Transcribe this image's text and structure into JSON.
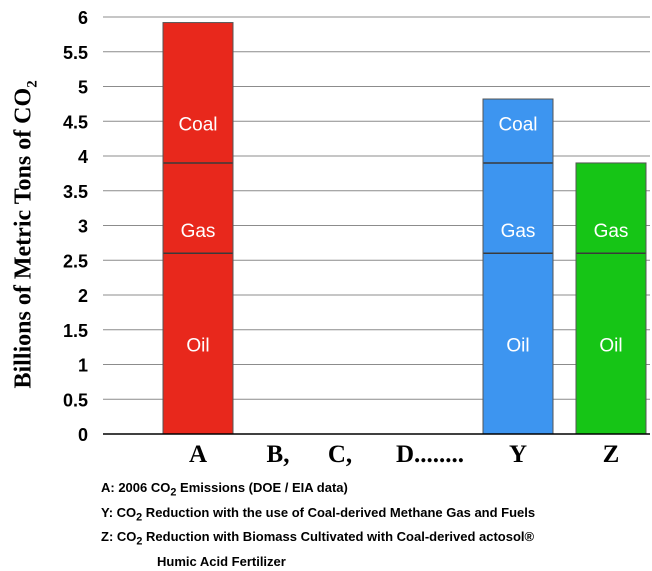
{
  "chart_data": {
    "type": "bar",
    "stacked": true,
    "categories": [
      "A",
      "B,",
      "C,",
      "D........",
      "Y",
      "Z"
    ],
    "ylabel_main": "Billions of Metric Tons of CO",
    "ylabel_sub": "2",
    "ylim": [
      0,
      6
    ],
    "yticks": [
      "0",
      "0.5",
      "1",
      "1.5",
      "2",
      "2.5",
      "3",
      "3.5",
      "4",
      "4.5",
      "5",
      "5.5",
      "6"
    ],
    "grid": true,
    "bars": [
      {
        "category": "A",
        "color": "#e8281c",
        "total": 5.92,
        "segments": [
          {
            "label": "Oil",
            "from": 0,
            "to": 2.6
          },
          {
            "label": "Gas",
            "from": 2.6,
            "to": 3.9
          },
          {
            "label": "Coal",
            "from": 3.9,
            "to": 5.92
          }
        ]
      },
      {
        "category": "Y",
        "color": "#3d95f0",
        "total": 4.82,
        "segments": [
          {
            "label": "Oil",
            "from": 0,
            "to": 2.6
          },
          {
            "label": "Gas",
            "from": 2.6,
            "to": 3.9
          },
          {
            "label": "Coal",
            "from": 3.9,
            "to": 4.82
          }
        ]
      },
      {
        "category": "Z",
        "color": "#16c516",
        "total": 3.9,
        "segments": [
          {
            "label": "Oil",
            "from": 0,
            "to": 2.6
          },
          {
            "label": "Gas",
            "from": 2.6,
            "to": 3.9
          }
        ]
      }
    ]
  },
  "notes": {
    "a_prefix": "A: 2006 CO",
    "a_sub": "2",
    "a_suffix": " Emissions (DOE / EIA data)",
    "y_prefix": "Y: CO",
    "y_sub": "2",
    "y_suffix": " Reduction with the use of Coal-derived Methane Gas and Fuels",
    "z_prefix": "Z: CO",
    "z_sub": "2",
    "z_suffix": " Reduction with Biomass Cultivated with Coal-derived actosol®",
    "z_cont": "Humic Acid Fertilizer"
  }
}
